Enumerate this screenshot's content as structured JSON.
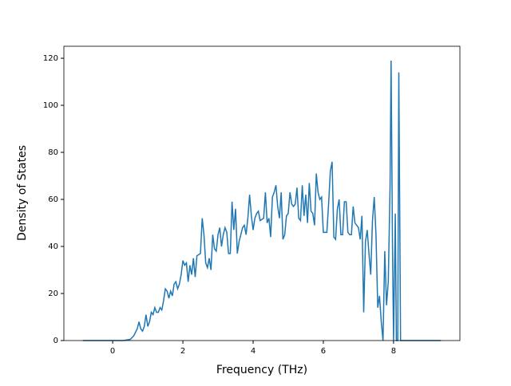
{
  "chart_data": {
    "type": "line",
    "xlabel": "Frequency (THz)",
    "ylabel": "Density of States",
    "x": [
      -0.85,
      0.3,
      0.5,
      0.6,
      0.7,
      0.75,
      0.8,
      0.85,
      0.9,
      0.95,
      1.0,
      1.05,
      1.1,
      1.15,
      1.2,
      1.25,
      1.3,
      1.35,
      1.4,
      1.45,
      1.5,
      1.55,
      1.6,
      1.65,
      1.7,
      1.75,
      1.8,
      1.85,
      1.9,
      1.95,
      2.0,
      2.05,
      2.1,
      2.15,
      2.2,
      2.25,
      2.3,
      2.35,
      2.4,
      2.5,
      2.55,
      2.6,
      2.65,
      2.7,
      2.75,
      2.8,
      2.85,
      2.9,
      2.95,
      3.0,
      3.05,
      3.1,
      3.15,
      3.2,
      3.25,
      3.3,
      3.35,
      3.4,
      3.45,
      3.5,
      3.55,
      3.6,
      3.7,
      3.75,
      3.8,
      3.85,
      3.9,
      3.95,
      4.0,
      4.05,
      4.1,
      4.15,
      4.2,
      4.3,
      4.35,
      4.4,
      4.45,
      4.5,
      4.55,
      4.6,
      4.65,
      4.7,
      4.75,
      4.8,
      4.85,
      4.9,
      4.95,
      5.0,
      5.05,
      5.1,
      5.15,
      5.2,
      5.25,
      5.3,
      5.35,
      5.4,
      5.45,
      5.5,
      5.55,
      5.6,
      5.65,
      5.7,
      5.75,
      5.8,
      5.85,
      5.9,
      5.95,
      6.0,
      6.05,
      6.1,
      6.15,
      6.2,
      6.25,
      6.3,
      6.35,
      6.4,
      6.45,
      6.5,
      6.55,
      6.6,
      6.65,
      6.7,
      6.75,
      6.8,
      6.85,
      6.9,
      6.95,
      7.0,
      7.05,
      7.1,
      7.15,
      7.2,
      7.25,
      7.3,
      7.35,
      7.4,
      7.45,
      7.5,
      7.55,
      7.6,
      7.65,
      7.7,
      7.75,
      7.8,
      7.85,
      7.9,
      7.93,
      7.97,
      8.0,
      8.05,
      8.08,
      8.12,
      8.15,
      8.2,
      9.35
    ],
    "series": [
      {
        "color": "#1f77b4",
        "values": [
          0,
          0,
          0.5,
          2,
          5,
          8,
          5,
          4,
          6,
          11,
          6,
          8,
          12,
          11,
          14,
          12,
          12,
          14,
          13,
          17,
          22,
          21,
          18,
          21,
          19,
          24,
          25,
          22,
          24,
          28,
          34,
          32,
          33,
          25,
          32,
          28,
          35,
          27,
          36,
          37,
          52,
          45,
          33,
          31,
          35,
          30,
          45,
          39,
          38,
          45,
          48,
          40,
          45,
          48,
          46,
          37,
          37,
          59,
          47,
          56,
          37,
          42,
          48,
          49,
          45,
          52,
          62,
          53,
          47,
          52,
          54,
          55,
          51,
          52,
          63,
          50,
          52,
          44,
          61,
          63,
          66,
          57,
          52,
          63,
          43,
          45,
          53,
          54,
          63,
          58,
          57,
          58,
          65,
          52,
          51,
          66,
          53,
          62,
          50,
          67,
          55,
          54,
          49,
          71,
          63,
          60,
          61,
          46,
          46,
          46,
          58,
          72,
          76,
          44,
          43,
          56,
          60,
          45,
          45,
          59,
          59,
          46,
          45,
          45,
          57,
          50,
          49,
          48,
          43,
          53,
          12,
          42,
          47,
          37,
          28,
          51,
          61,
          45,
          14,
          19,
          8,
          0,
          38,
          15,
          25,
          65,
          119,
          40,
          0,
          54,
          0,
          0,
          114,
          0,
          0
        ]
      }
    ],
    "xlim": [
      -1.39,
      9.89
    ],
    "ylim": [
      0,
      125.1
    ],
    "xticks": [
      0,
      2,
      4,
      6,
      8
    ],
    "yticks": [
      0,
      20,
      40,
      60,
      80,
      100,
      120
    ]
  }
}
